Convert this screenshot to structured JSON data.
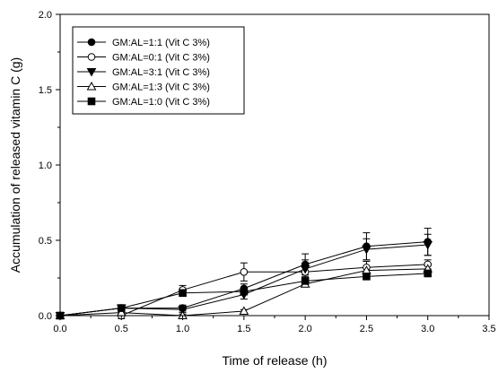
{
  "chart_data": {
    "type": "line",
    "xlabel": "Time of release (h)",
    "ylabel": "Accumulation of released vitamin C (g)",
    "xlim": [
      0.0,
      3.5
    ],
    "ylim": [
      0.0,
      2.0
    ],
    "x_ticks": [
      "0.0",
      "0.5",
      "1.0",
      "1.5",
      "2.0",
      "2.5",
      "3.0",
      "3.5"
    ],
    "y_ticks": [
      "0.0",
      "0.5",
      "1.0",
      "1.5",
      "2.0"
    ],
    "grid": false,
    "legend_position": "top-left",
    "x": [
      0.0,
      0.5,
      1.0,
      1.5,
      2.0,
      2.5,
      3.0
    ],
    "series": [
      {
        "name": "GM:AL=1:1 (Vit C 3%)",
        "marker": "filled-circle",
        "values": [
          0.0,
          0.05,
          0.05,
          0.18,
          0.34,
          0.46,
          0.49
        ],
        "errors": [
          0.0,
          0.02,
          0.02,
          0.03,
          0.07,
          0.09,
          0.09
        ]
      },
      {
        "name": "GM:AL=0:1 (Vit C 3%)",
        "marker": "open-circle",
        "values": [
          0.0,
          0.0,
          0.17,
          0.29,
          0.29,
          0.32,
          0.34
        ],
        "errors": [
          0.0,
          0.02,
          0.03,
          0.06,
          0.03,
          0.04,
          0.03
        ]
      },
      {
        "name": "GM:AL=3:1 (Vit C 3%)",
        "marker": "filled-triangle-down",
        "values": [
          0.0,
          0.05,
          0.04,
          0.14,
          0.31,
          0.44,
          0.47
        ],
        "errors": [
          0.0,
          0.02,
          0.02,
          0.03,
          0.06,
          0.07,
          0.07
        ]
      },
      {
        "name": "GM:AL=1:3 (Vit C 3%)",
        "marker": "open-triangle-up",
        "values": [
          0.0,
          0.02,
          0.0,
          0.03,
          0.21,
          0.3,
          0.31
        ],
        "errors": [
          0.0,
          0.01,
          0.01,
          0.01,
          0.02,
          0.02,
          0.02
        ]
      },
      {
        "name": "GM:AL=1:0 (Vit C 3%)",
        "marker": "filled-square",
        "values": [
          0.0,
          0.05,
          0.15,
          0.16,
          0.23,
          0.26,
          0.28
        ],
        "errors": [
          0.0,
          0.01,
          0.02,
          0.02,
          0.02,
          0.02,
          0.02
        ]
      }
    ]
  }
}
